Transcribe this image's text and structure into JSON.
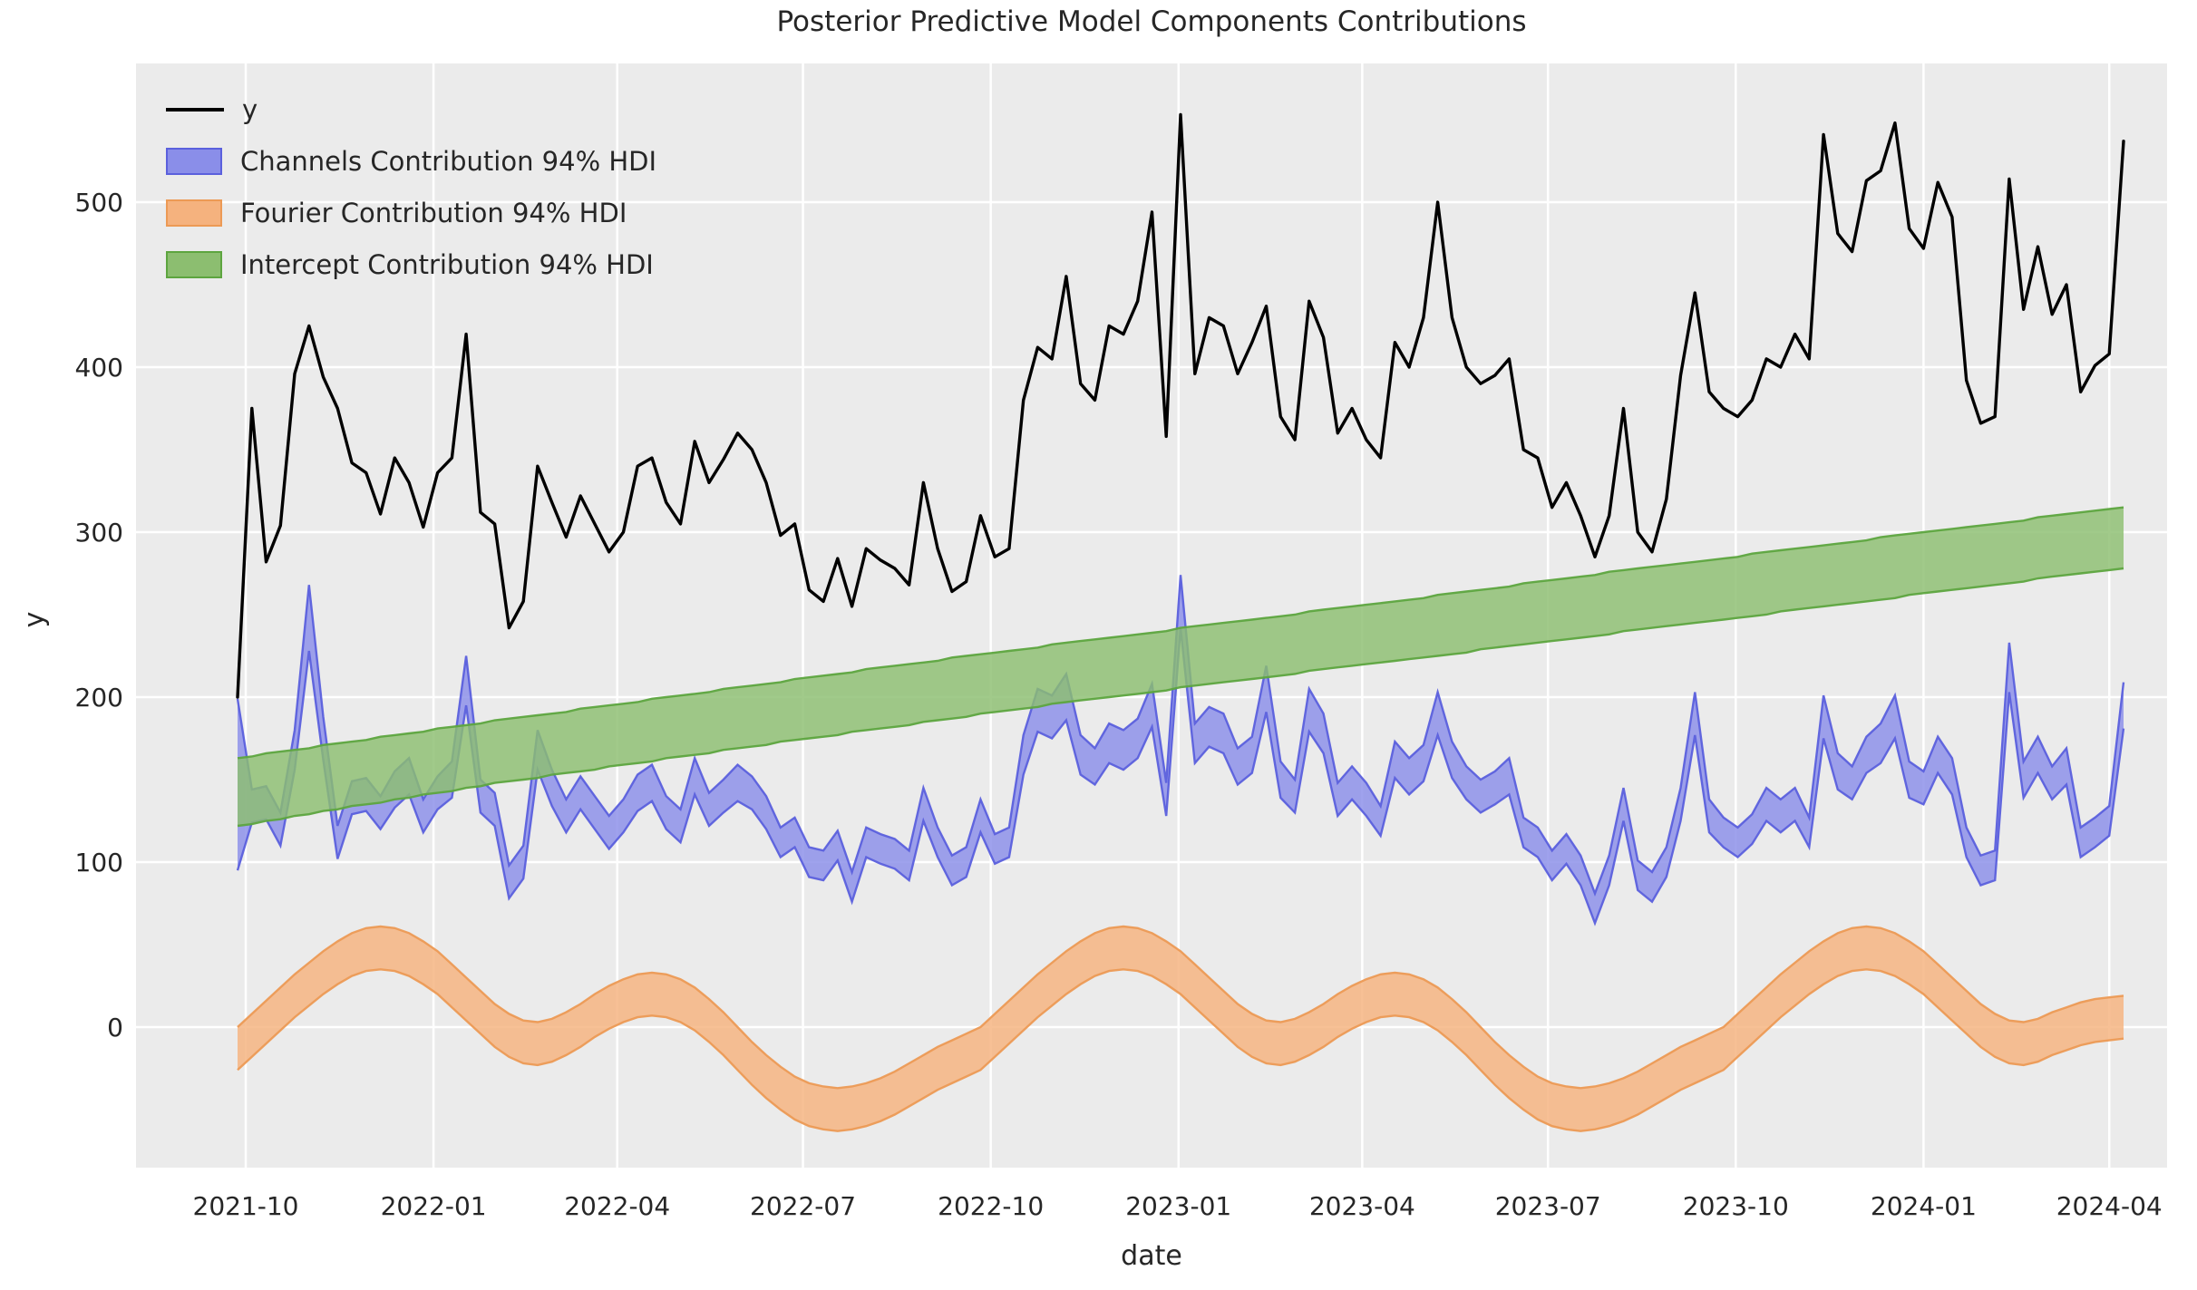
{
  "title": "Posterior Predictive Model Components Contributions",
  "axes": {
    "xlabel": "date",
    "ylabel": "y",
    "x_tick_labels": [
      "2021-10",
      "2022-01",
      "2022-04",
      "2022-07",
      "2022-10",
      "2023-01",
      "2023-04",
      "2023-07",
      "2023-10",
      "2024-01",
      "2024-04"
    ],
    "y_tick_values": [
      0,
      100,
      200,
      300,
      400,
      500
    ]
  },
  "colors": {
    "plot_bg": "#ebebeb",
    "grid": "#ffffff",
    "text": "#262626",
    "y_line": "#000000",
    "channels_fill": "#8a8ee9",
    "channels_edge": "#5b60dd",
    "fourier_fill": "#f5b27e",
    "fourier_edge": "#ec9a55",
    "intercept_fill": "#8cbe70",
    "intercept_edge": "#5da53f"
  },
  "legend": [
    {
      "label": "y",
      "swatch": "line",
      "fill": "#000000",
      "edge": "#000000"
    },
    {
      "label": "Channels Contribution 94% HDI",
      "swatch": "patch",
      "fill": "#8a8ee9",
      "edge": "#5b60dd"
    },
    {
      "label": "Fourier Contribution 94% HDI",
      "swatch": "patch",
      "fill": "#f5b27e",
      "edge": "#ec9a55"
    },
    {
      "label": "Intercept Contribution 94% HDI",
      "swatch": "patch",
      "fill": "#8cbe70",
      "edge": "#5da53f"
    }
  ],
  "chart_data": {
    "type": "line",
    "title": "Posterior Predictive Model Components Contributions",
    "xlabel": "date",
    "ylabel": "y",
    "ylim": [
      -85,
      584
    ],
    "grid": true,
    "legend_position": "upper left",
    "x_dates": {
      "start": "2021-09-27",
      "step_days": 7,
      "count": 133
    },
    "series": [
      {
        "name": "y",
        "type": "line",
        "color_key": "y_line",
        "values": [
          200,
          375,
          282,
          304,
          396,
          425,
          394,
          375,
          342,
          336,
          311,
          345,
          330,
          303,
          336,
          345,
          420,
          312,
          305,
          242,
          258,
          340,
          318,
          297,
          322,
          305,
          288,
          300,
          340,
          345,
          318,
          305,
          355,
          330,
          344,
          360,
          350,
          330,
          298,
          305,
          265,
          258,
          284,
          255,
          290,
          283,
          278,
          268,
          330,
          290,
          264,
          270,
          310,
          285,
          290,
          380,
          412,
          405,
          455,
          390,
          380,
          425,
          420,
          440,
          494,
          358,
          553,
          396,
          430,
          425,
          396,
          415,
          437,
          370,
          356,
          440,
          418,
          360,
          375,
          356,
          345,
          415,
          400,
          430,
          500,
          430,
          400,
          390,
          395,
          405,
          350,
          345,
          315,
          330,
          310,
          285,
          310,
          375,
          300,
          288,
          320,
          395,
          445,
          385,
          375,
          370,
          380,
          405,
          400,
          420,
          405,
          541,
          481,
          470,
          513,
          519,
          548,
          484,
          472,
          512,
          491,
          392,
          366,
          370,
          514,
          435,
          473,
          432,
          450,
          385,
          401,
          408,
          537
        ]
      },
      {
        "name": "Channels Contribution 94% HDI",
        "type": "band",
        "fill_key": "channels_fill",
        "edge_key": "channels_edge",
        "lower": [
          95,
          124,
          126,
          110,
          156,
          228,
          162,
          102,
          129,
          131,
          120,
          133,
          141,
          118,
          132,
          139,
          195,
          130,
          122,
          78,
          90,
          156,
          134,
          118,
          132,
          120,
          108,
          118,
          131,
          137,
          120,
          112,
          141,
          122,
          130,
          137,
          132,
          120,
          103,
          109,
          91,
          89,
          101,
          76,
          103,
          99,
          96,
          89,
          125,
          103,
          86,
          91,
          118,
          99,
          103,
          153,
          179,
          175,
          186,
          153,
          147,
          160,
          156,
          163,
          182,
          128,
          242,
          160,
          170,
          166,
          147,
          154,
          191,
          139,
          130,
          179,
          166,
          128,
          138,
          128,
          116,
          151,
          141,
          149,
          177,
          151,
          138,
          130,
          135,
          141,
          109,
          103,
          89,
          99,
          86,
          63,
          86,
          125,
          83,
          76,
          91,
          125,
          177,
          118,
          109,
          103,
          111,
          125,
          118,
          125,
          109,
          175,
          144,
          138,
          154,
          160,
          175,
          139,
          135,
          154,
          141,
          103,
          86,
          89,
          203,
          139,
          154,
          138,
          147,
          103,
          109,
          116,
          181
        ],
        "upper": [
          199,
          144,
          146,
          130,
          180,
          268,
          188,
          122,
          149,
          151,
          140,
          155,
          163,
          138,
          152,
          161,
          225,
          150,
          142,
          98,
          110,
          180,
          156,
          138,
          152,
          140,
          128,
          138,
          153,
          159,
          140,
          132,
          163,
          142,
          150,
          159,
          152,
          140,
          121,
          127,
          109,
          107,
          119,
          94,
          121,
          117,
          114,
          107,
          145,
          121,
          104,
          109,
          138,
          117,
          121,
          177,
          205,
          201,
          214,
          177,
          169,
          184,
          180,
          187,
          208,
          148,
          274,
          184,
          194,
          190,
          169,
          176,
          219,
          161,
          150,
          205,
          190,
          148,
          158,
          148,
          134,
          173,
          163,
          171,
          203,
          173,
          158,
          150,
          155,
          163,
          127,
          121,
          107,
          117,
          104,
          81,
          104,
          145,
          101,
          94,
          109,
          145,
          203,
          138,
          127,
          121,
          129,
          145,
          138,
          145,
          127,
          201,
          166,
          158,
          176,
          184,
          201,
          161,
          155,
          176,
          163,
          121,
          104,
          107,
          233,
          161,
          176,
          158,
          169,
          121,
          127,
          134,
          209
        ]
      },
      {
        "name": "Fourier Contribution 94% HDI",
        "type": "band",
        "fill_key": "fourier_fill",
        "edge_key": "fourier_edge",
        "lower": [
          -26,
          -18,
          -10,
          -2,
          6,
          13,
          20,
          26,
          31,
          34,
          35,
          34,
          31,
          26,
          20,
          12,
          4,
          -4,
          -12,
          -18,
          -22,
          -23,
          -21,
          -17,
          -12,
          -6,
          -1,
          3,
          6,
          7,
          6,
          3,
          -2,
          -9,
          -17,
          -26,
          -35,
          -43,
          -50,
          -56,
          -60,
          -62,
          -63,
          -62,
          -60,
          -57,
          -53,
          -48,
          -43,
          -38,
          -34,
          -30,
          -26,
          -18,
          -10,
          -2,
          6,
          13,
          20,
          26,
          31,
          34,
          35,
          34,
          31,
          26,
          20,
          12,
          4,
          -4,
          -12,
          -18,
          -22,
          -23,
          -21,
          -17,
          -12,
          -6,
          -1,
          3,
          6,
          7,
          6,
          3,
          -2,
          -9,
          -17,
          -26,
          -35,
          -43,
          -50,
          -56,
          -60,
          -62,
          -63,
          -62,
          -60,
          -57,
          -53,
          -48,
          -43,
          -38,
          -34,
          -30,
          -26,
          -18,
          -10,
          -2,
          6,
          13,
          20,
          26,
          31,
          34,
          35,
          34,
          31,
          26,
          20,
          12,
          4,
          -4,
          -12,
          -18,
          -22,
          -23,
          -21,
          -17,
          -14,
          -11,
          -9,
          -8,
          -7
        ],
        "upper": [
          0,
          8,
          16,
          24,
          32,
          39,
          46,
          52,
          57,
          60,
          61,
          60,
          57,
          52,
          46,
          38,
          30,
          22,
          14,
          8,
          4,
          3,
          5,
          9,
          14,
          20,
          25,
          29,
          32,
          33,
          32,
          29,
          24,
          17,
          9,
          0,
          -9,
          -17,
          -24,
          -30,
          -34,
          -36,
          -37,
          -36,
          -34,
          -31,
          -27,
          -22,
          -17,
          -12,
          -8,
          -4,
          0,
          8,
          16,
          24,
          32,
          39,
          46,
          52,
          57,
          60,
          61,
          60,
          57,
          52,
          46,
          38,
          30,
          22,
          14,
          8,
          4,
          3,
          5,
          9,
          14,
          20,
          25,
          29,
          32,
          33,
          32,
          29,
          24,
          17,
          9,
          0,
          -9,
          -17,
          -24,
          -30,
          -34,
          -36,
          -37,
          -36,
          -34,
          -31,
          -27,
          -22,
          -17,
          -12,
          -8,
          -4,
          0,
          8,
          16,
          24,
          32,
          39,
          46,
          52,
          57,
          60,
          61,
          60,
          57,
          52,
          46,
          38,
          30,
          22,
          14,
          8,
          4,
          3,
          5,
          9,
          12,
          15,
          17,
          18,
          19
        ]
      },
      {
        "name": "Intercept Contribution 94% HDI",
        "type": "band",
        "fill_key": "intercept_fill",
        "edge_key": "intercept_edge",
        "lower": [
          122,
          123,
          125,
          126,
          128,
          129,
          131,
          132,
          134,
          135,
          136,
          138,
          139,
          141,
          142,
          143,
          145,
          146,
          148,
          149,
          150,
          151,
          153,
          154,
          155,
          156,
          158,
          159,
          160,
          161,
          163,
          164,
          165,
          166,
          168,
          169,
          170,
          171,
          173,
          174,
          175,
          176,
          177,
          179,
          180,
          181,
          182,
          183,
          185,
          186,
          187,
          188,
          190,
          191,
          192,
          193,
          194,
          196,
          197,
          198,
          199,
          200,
          201,
          202,
          203,
          204,
          206,
          207,
          208,
          209,
          210,
          211,
          212,
          213,
          214,
          216,
          217,
          218,
          219,
          220,
          221,
          222,
          223,
          224,
          225,
          226,
          227,
          229,
          230,
          231,
          232,
          233,
          234,
          235,
          236,
          237,
          238,
          240,
          241,
          242,
          243,
          244,
          245,
          246,
          247,
          248,
          249,
          250,
          252,
          253,
          254,
          255,
          256,
          257,
          258,
          259,
          260,
          262,
          263,
          264,
          265,
          266,
          267,
          268,
          269,
          270,
          272,
          273,
          274,
          275,
          276,
          277,
          278
        ],
        "upper": [
          163,
          164,
          166,
          167,
          168,
          169,
          171,
          172,
          173,
          174,
          176,
          177,
          178,
          179,
          181,
          182,
          183,
          184,
          186,
          187,
          188,
          189,
          190,
          191,
          193,
          194,
          195,
          196,
          197,
          199,
          200,
          201,
          202,
          203,
          205,
          206,
          207,
          208,
          209,
          211,
          212,
          213,
          214,
          215,
          217,
          218,
          219,
          220,
          221,
          222,
          224,
          225,
          226,
          227,
          228,
          229,
          230,
          232,
          233,
          234,
          235,
          236,
          237,
          238,
          239,
          240,
          242,
          243,
          244,
          245,
          246,
          247,
          248,
          249,
          250,
          252,
          253,
          254,
          255,
          256,
          257,
          258,
          259,
          260,
          262,
          263,
          264,
          265,
          266,
          267,
          269,
          270,
          271,
          272,
          273,
          274,
          276,
          277,
          278,
          279,
          280,
          281,
          282,
          283,
          284,
          285,
          287,
          288,
          289,
          290,
          291,
          292,
          293,
          294,
          295,
          297,
          298,
          299,
          300,
          301,
          302,
          303,
          304,
          305,
          306,
          307,
          309,
          310,
          311,
          312,
          313,
          314,
          315
        ]
      }
    ]
  }
}
